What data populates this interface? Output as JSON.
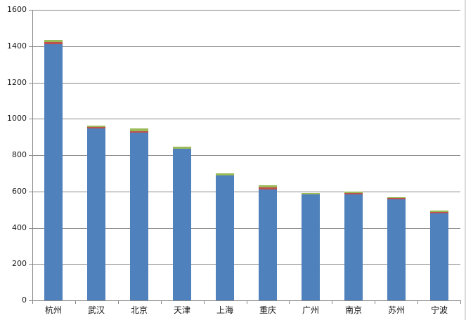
{
  "chart_data": {
    "type": "bar",
    "stacked": true,
    "title": "",
    "xlabel": "",
    "ylabel": "",
    "categories": [
      "杭州",
      "武汉",
      "北京",
      "天津",
      "上海",
      "重庆",
      "广州",
      "南京",
      "苏州",
      "宁波"
    ],
    "series": [
      {
        "name": "blue",
        "color": "#4F81BD",
        "values": [
          1410,
          945,
          925,
          835,
          688,
          612,
          582,
          585,
          557,
          478
        ]
      },
      {
        "name": "red",
        "color": "#C0504D",
        "values": [
          12,
          10,
          8,
          0,
          0,
          12,
          0,
          5,
          8,
          8
        ]
      },
      {
        "name": "green",
        "color": "#9BBB59",
        "values": [
          13,
          8,
          12,
          12,
          12,
          8,
          10,
          8,
          5,
          8
        ]
      }
    ],
    "totals": [
      1435,
      963,
      945,
      847,
      700,
      632,
      592,
      598,
      570,
      494
    ],
    "ylim": [
      0,
      1600
    ],
    "yticks": [
      0,
      200,
      400,
      600,
      800,
      1000,
      1200,
      1400,
      1600
    ],
    "grid": true,
    "legend": false
  },
  "colors": {
    "background": "#FFFFFF",
    "gridline": "#878787",
    "axis": "#878787",
    "label": "#111111",
    "bar_blue": "#4F81BD",
    "bar_red": "#C0504D",
    "bar_green": "#9BBB59"
  }
}
